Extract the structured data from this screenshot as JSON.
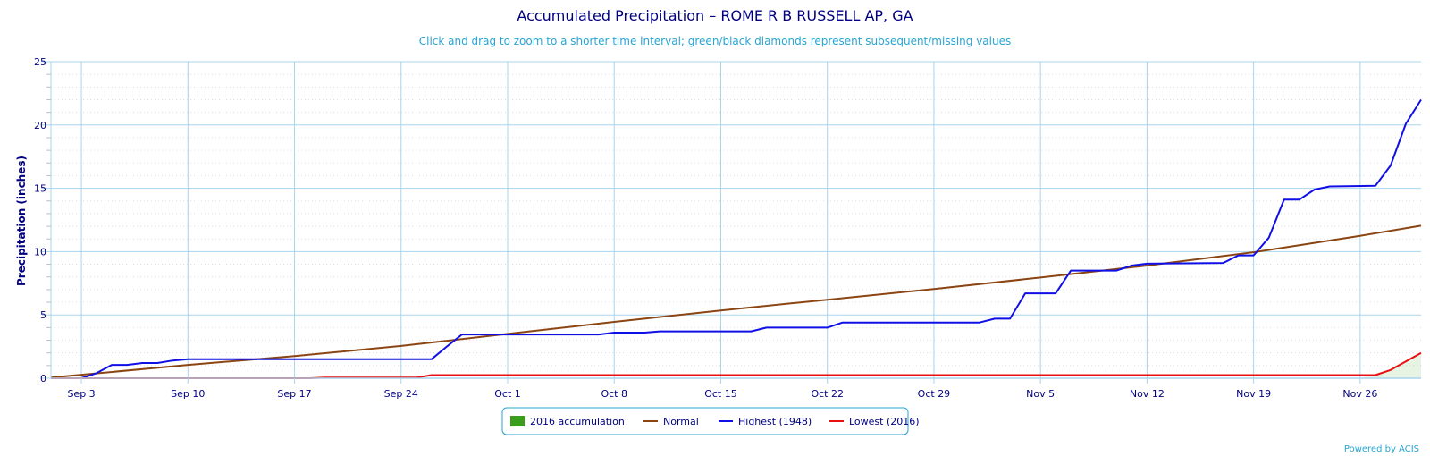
{
  "chart_data": {
    "type": "line",
    "title": "Accumulated Precipitation – ROME R B RUSSELL AP, GA",
    "subtitle": "Click and drag to zoom to a shorter time interval; green/black diamonds represent subsequent/missing values",
    "ylabel": "Precipitation (inches)",
    "xlabel": "",
    "ylim": [
      0,
      25
    ],
    "yticks": [
      0,
      5,
      10,
      15,
      20,
      25
    ],
    "xlim": [
      "Sep 1",
      "Nov 30"
    ],
    "xticks": [
      "Sep 3",
      "Sep 10",
      "Sep 17",
      "Sep 24",
      "Oct 1",
      "Oct 8",
      "Oct 15",
      "Oct 22",
      "Oct 29",
      "Nov 5",
      "Nov 12",
      "Nov 19",
      "Nov 26"
    ],
    "grid": true,
    "legend_position": "bottom-center",
    "series": [
      {
        "name": "2016 accumulation",
        "color": "#3a9e1c",
        "style": "area",
        "points": [
          [
            "Sep 1",
            0
          ],
          [
            "Nov 26",
            0
          ],
          [
            "Nov 28",
            0.7
          ],
          [
            "Nov 30",
            2.0
          ]
        ]
      },
      {
        "name": "Normal",
        "color": "#8b4513",
        "style": "line",
        "points": [
          [
            "Sep 1",
            0.05
          ],
          [
            "Sep 10",
            1.05
          ],
          [
            "Sep 17",
            1.75
          ],
          [
            "Sep 24",
            2.55
          ],
          [
            "Oct 1",
            3.5
          ],
          [
            "Oct 8",
            4.45
          ],
          [
            "Oct 15",
            5.35
          ],
          [
            "Oct 22",
            6.2
          ],
          [
            "Oct 29",
            7.05
          ],
          [
            "Nov 5",
            7.95
          ],
          [
            "Nov 12",
            8.9
          ],
          [
            "Nov 19",
            9.95
          ],
          [
            "Nov 26",
            11.25
          ],
          [
            "Nov 30",
            12.05
          ]
        ]
      },
      {
        "name": "Highest (1948)",
        "color": "#1010e6",
        "style": "line",
        "points": [
          [
            "Sep 3",
            0
          ],
          [
            "Sep 4",
            0.4
          ],
          [
            "Sep 5",
            1.05
          ],
          [
            "Sep 6",
            1.05
          ],
          [
            "Sep 7",
            1.2
          ],
          [
            "Sep 8",
            1.2
          ],
          [
            "Sep 9",
            1.4
          ],
          [
            "Sep 10",
            1.5
          ],
          [
            "Sep 24",
            1.5
          ],
          [
            "Sep 26",
            1.5
          ],
          [
            "Sep 27",
            2.5
          ],
          [
            "Sep 28",
            3.45
          ],
          [
            "Oct 7",
            3.45
          ],
          [
            "Oct 8",
            3.6
          ],
          [
            "Oct 10",
            3.6
          ],
          [
            "Oct 11",
            3.7
          ],
          [
            "Oct 17",
            3.7
          ],
          [
            "Oct 18",
            4.0
          ],
          [
            "Oct 22",
            4.0
          ],
          [
            "Oct 23",
            4.4
          ],
          [
            "Nov 1",
            4.4
          ],
          [
            "Nov 2",
            4.7
          ],
          [
            "Nov 3",
            4.7
          ],
          [
            "Nov 4",
            6.7
          ],
          [
            "Nov 6",
            6.7
          ],
          [
            "Nov 7",
            8.5
          ],
          [
            "Nov 10",
            8.5
          ],
          [
            "Nov 11",
            8.9
          ],
          [
            "Nov 12",
            9.05
          ],
          [
            "Nov 17",
            9.1
          ],
          [
            "Nov 18",
            9.7
          ],
          [
            "Nov 19",
            9.7
          ],
          [
            "Nov 20",
            11.1
          ],
          [
            "Nov 21",
            14.1
          ],
          [
            "Nov 22",
            14.1
          ],
          [
            "Nov 23",
            14.9
          ],
          [
            "Nov 24",
            15.15
          ],
          [
            "Nov 27",
            15.2
          ],
          [
            "Nov 28",
            16.8
          ],
          [
            "Nov 29",
            20.1
          ],
          [
            "Nov 30",
            22.0
          ],
          [
            "Nov 30",
            22.0
          ]
        ]
      },
      {
        "name": "Lowest (2016)",
        "color": "#e81010",
        "style": "line",
        "points": [
          [
            "Sep 1",
            0
          ],
          [
            "Sep 18",
            0
          ],
          [
            "Sep 19",
            0.05
          ],
          [
            "Sep 25",
            0.05
          ],
          [
            "Sep 26",
            0.25
          ],
          [
            "Nov 27",
            0.25
          ],
          [
            "Nov 28",
            0.65
          ],
          [
            "Nov 30",
            2.0
          ]
        ]
      }
    ],
    "credits": "Powered by ACIS"
  }
}
